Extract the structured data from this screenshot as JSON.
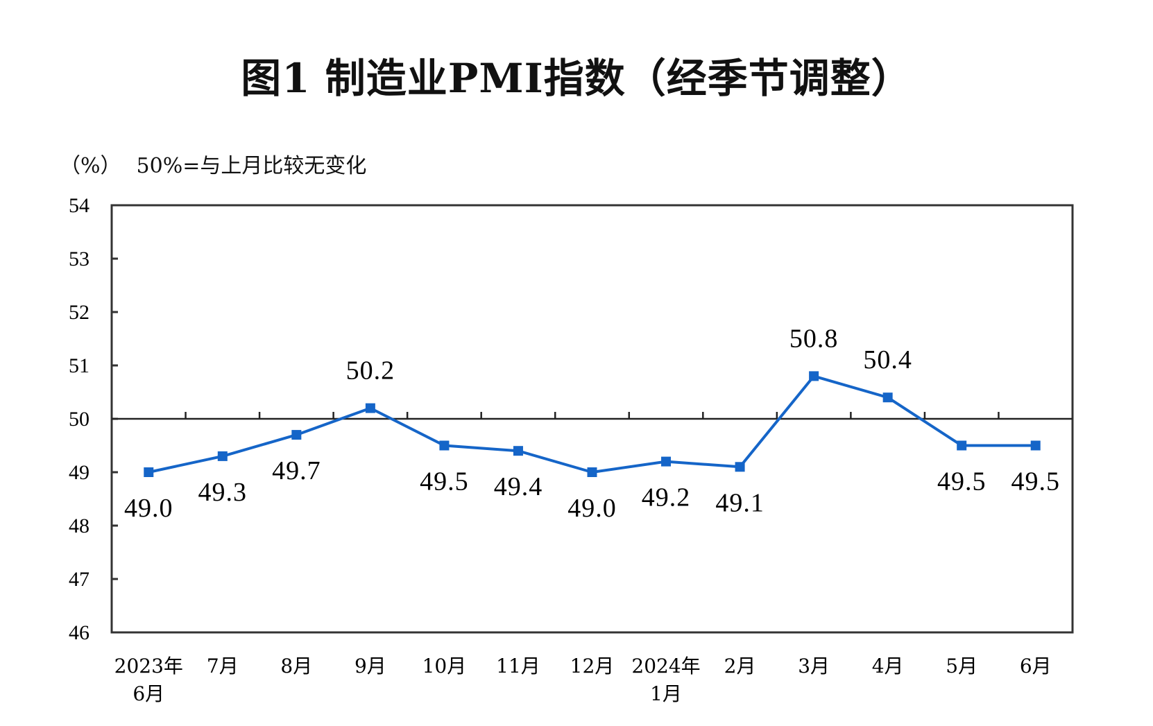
{
  "chart_data": {
    "type": "line",
    "title": "图1  制造业PMI指数（经季节调整）",
    "unit_label": "（%）",
    "note": "50%=与上月比较无变化",
    "categories": [
      [
        "2023年",
        "6月"
      ],
      [
        "7月"
      ],
      [
        "8月"
      ],
      [
        "9月"
      ],
      [
        "10月"
      ],
      [
        "11月"
      ],
      [
        "12月"
      ],
      [
        "2024年",
        "1月"
      ],
      [
        "2月"
      ],
      [
        "3月"
      ],
      [
        "4月"
      ],
      [
        "5月"
      ],
      [
        "6月"
      ]
    ],
    "values": [
      49.0,
      49.3,
      49.7,
      50.2,
      49.5,
      49.4,
      49.0,
      49.2,
      49.1,
      50.8,
      50.4,
      49.5,
      49.5
    ],
    "data_labels": [
      "49.0",
      "49.3",
      "49.7",
      "50.2",
      "49.5",
      "49.4",
      "49.0",
      "49.2",
      "49.1",
      "50.8",
      "50.4",
      "49.5",
      "49.5"
    ],
    "ylim": [
      46,
      54
    ],
    "yticks": [
      "46",
      "47",
      "48",
      "49",
      "50",
      "51",
      "52",
      "53",
      "54"
    ],
    "reference_line": 50,
    "grid": false,
    "line_color": "#1565c8",
    "marker": "square"
  }
}
